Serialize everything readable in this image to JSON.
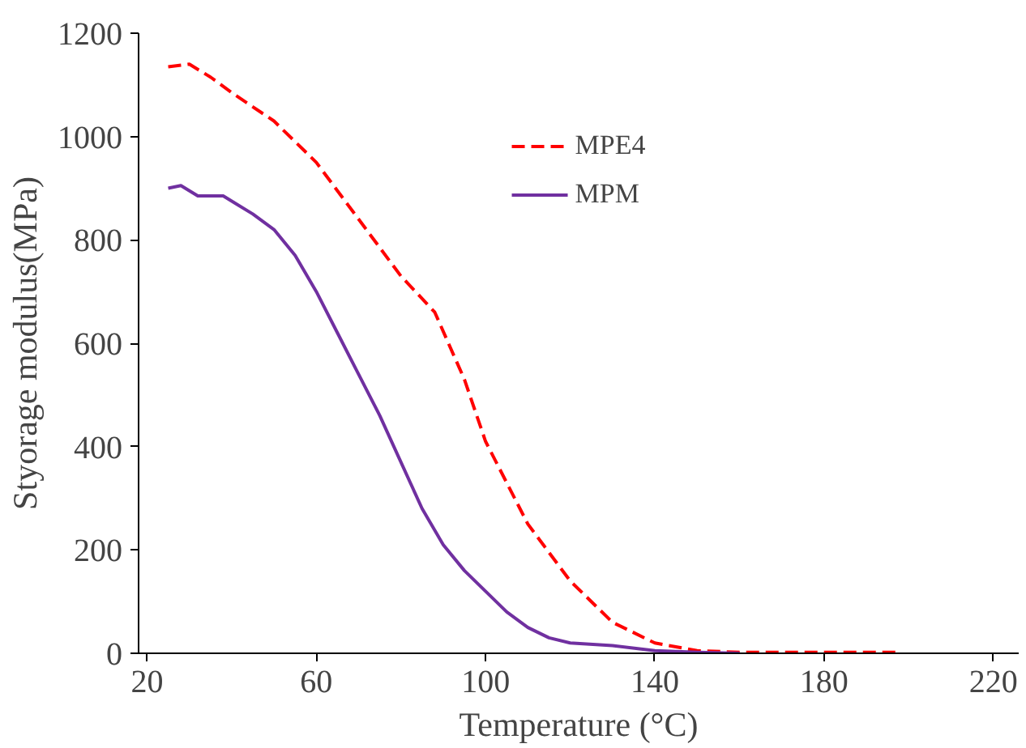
{
  "chart_data": {
    "type": "line",
    "xlabel": "Temperature (°C)",
    "ylabel": "Styorage modulus(MPa)",
    "xlim": [
      18,
      226
    ],
    "ylim": [
      0,
      1200
    ],
    "xticks": [
      20,
      60,
      100,
      140,
      180,
      220
    ],
    "yticks": [
      0,
      200,
      400,
      600,
      800,
      1000,
      1200
    ],
    "grid": false,
    "legend": "top",
    "marker": "none",
    "series": [
      {
        "name": "MPE4",
        "color": "#ff0000",
        "line_style": "dashed",
        "x": [
          25,
          30,
          35,
          40,
          50,
          60,
          70,
          80,
          88,
          95,
          100,
          110,
          120,
          130,
          140,
          150,
          160,
          180,
          198
        ],
        "values": [
          1135,
          1140,
          1115,
          1085,
          1030,
          950,
          840,
          730,
          660,
          530,
          410,
          250,
          140,
          60,
          20,
          5,
          2,
          2,
          2
        ]
      },
      {
        "name": "MPM",
        "color": "#7030a0",
        "line_style": "solid",
        "x": [
          25,
          28,
          32,
          38,
          45,
          50,
          55,
          60,
          65,
          70,
          75,
          80,
          85,
          90,
          95,
          100,
          105,
          110,
          115,
          120,
          130,
          140,
          150,
          160
        ],
        "values": [
          900,
          905,
          885,
          885,
          850,
          820,
          770,
          700,
          620,
          540,
          460,
          370,
          280,
          210,
          160,
          120,
          80,
          50,
          30,
          20,
          15,
          5,
          2,
          0
        ]
      }
    ]
  }
}
